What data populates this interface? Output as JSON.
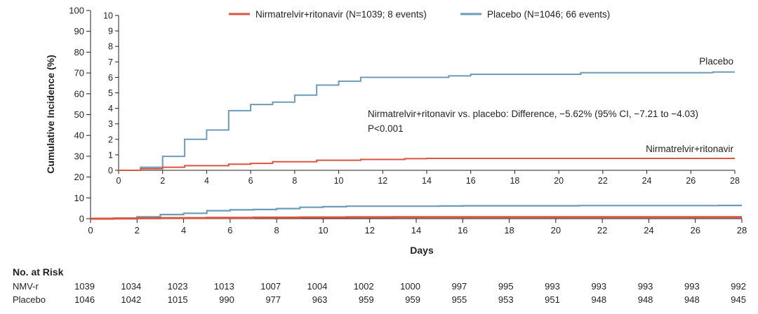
{
  "chart_data": {
    "type": "line",
    "title": "",
    "xlabel": "Days",
    "ylabel": "Cumulative Incidence (%)",
    "xlim": [
      0,
      28
    ],
    "ylim": [
      0,
      100
    ],
    "x_ticks": [
      0,
      2,
      4,
      6,
      8,
      10,
      12,
      14,
      16,
      18,
      20,
      22,
      24,
      26,
      28
    ],
    "y_ticks": [
      0,
      10,
      20,
      30,
      40,
      50,
      60,
      70,
      80,
      90,
      100
    ],
    "legend_position": "top",
    "colors": {
      "nirmatrelvir": "#d8553f",
      "placebo": "#6c9cb7"
    },
    "series": [
      {
        "key": "nirmatrelvir",
        "name": "Nirmatrelvir+ritonavir",
        "legend": "Nirmatrelvir+ritonavir (N=1039; 8 events)",
        "x": [
          0,
          1,
          2,
          3,
          5,
          6,
          7,
          9,
          11,
          13,
          14,
          28
        ],
        "y": [
          0,
          0.1,
          0.2,
          0.3,
          0.4,
          0.45,
          0.55,
          0.65,
          0.7,
          0.75,
          0.77,
          0.77
        ]
      },
      {
        "key": "placebo",
        "name": "Placebo",
        "legend": "Placebo (N=1046; 66 events)",
        "x": [
          0,
          1,
          2,
          3,
          4,
          5,
          6,
          7,
          8,
          9,
          10,
          11,
          13,
          15,
          16,
          19,
          21,
          24,
          27,
          28
        ],
        "y": [
          0,
          0.2,
          0.9,
          2.0,
          2.6,
          3.85,
          4.25,
          4.4,
          4.85,
          5.5,
          5.75,
          6.0,
          6.0,
          6.1,
          6.2,
          6.2,
          6.3,
          6.3,
          6.35,
          6.35
        ]
      }
    ],
    "inset": {
      "ylim": [
        0,
        10
      ],
      "y_ticks": [
        0,
        1,
        2,
        3,
        4,
        5,
        6,
        7,
        8,
        9,
        10
      ],
      "xlim": [
        0,
        28
      ],
      "x_ticks": [
        0,
        2,
        4,
        6,
        8,
        10,
        12,
        14,
        16,
        18,
        20,
        22,
        24,
        26,
        28
      ]
    },
    "annotations": {
      "line1": "Nirmatrelvir+ritonavir vs. placebo: Difference, −5.62% (95% CI, −7.21 to −4.03)",
      "line2": "P<0.001",
      "label_placebo": "Placebo",
      "label_nirmatrelvir": "Nirmatrelvir+ritonavir"
    },
    "at_risk": {
      "title": "No. at Risk",
      "rows": [
        {
          "label": "NMV-r",
          "values": [
            "1039",
            "1034",
            "1023",
            "1013",
            "1007",
            "1004",
            "1002",
            "1000",
            "997",
            "995",
            "993",
            "993",
            "993",
            "993",
            "992"
          ]
        },
        {
          "label": "Placebo",
          "values": [
            "1046",
            "1042",
            "1015",
            "990",
            "977",
            "963",
            "959",
            "959",
            "955",
            "953",
            "951",
            "948",
            "948",
            "948",
            "945"
          ]
        }
      ]
    }
  }
}
